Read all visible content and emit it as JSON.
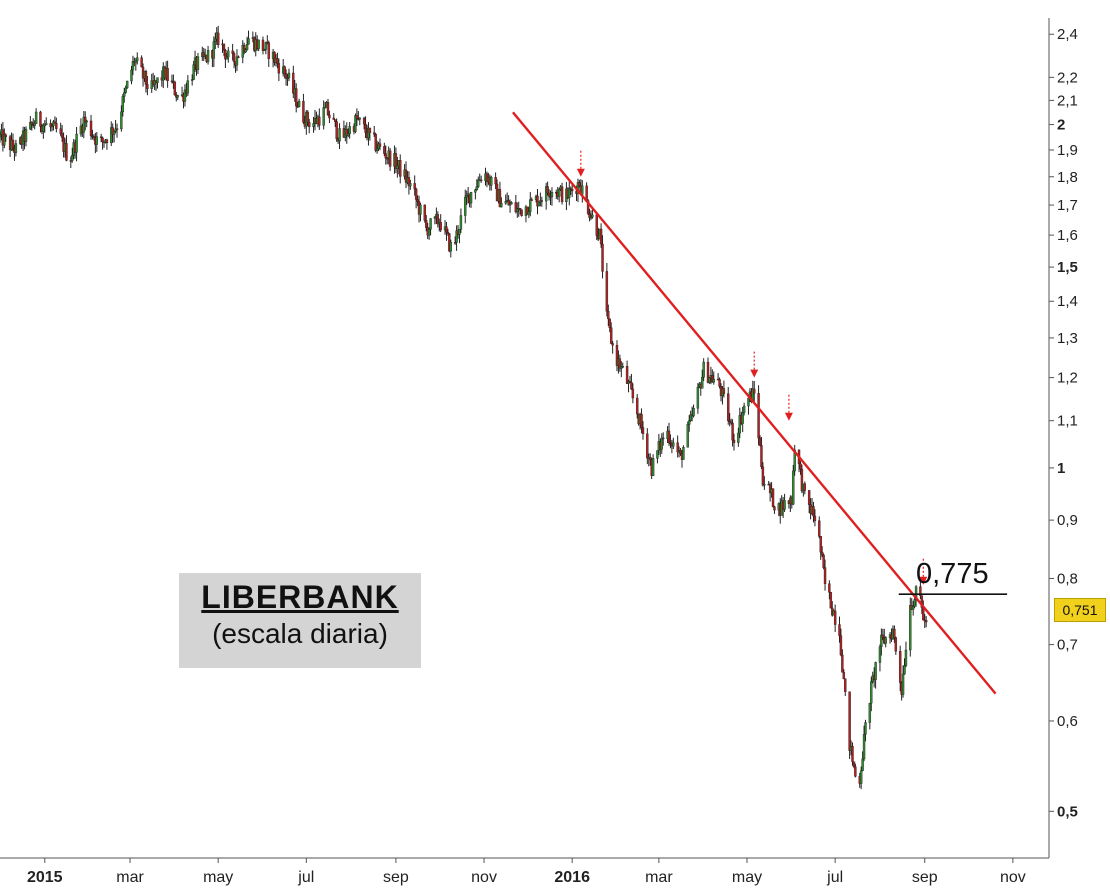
{
  "chart_data": {
    "type": "candlestick",
    "title": "LIBERBANK",
    "subtitle": "(escala diaria)",
    "y_scale": "log",
    "ylim": [
      0.455,
      2.48
    ],
    "y_ticks": [
      {
        "value": 2.4,
        "label": "2,4",
        "bold": false
      },
      {
        "value": 2.2,
        "label": "2,2",
        "bold": false
      },
      {
        "value": 2.1,
        "label": "2,1",
        "bold": false
      },
      {
        "value": 2.0,
        "label": "2",
        "bold": true
      },
      {
        "value": 1.9,
        "label": "1,9",
        "bold": false
      },
      {
        "value": 1.8,
        "label": "1,8",
        "bold": false
      },
      {
        "value": 1.7,
        "label": "1,7",
        "bold": false
      },
      {
        "value": 1.6,
        "label": "1,6",
        "bold": false
      },
      {
        "value": 1.5,
        "label": "1,5",
        "bold": true
      },
      {
        "value": 1.4,
        "label": "1,4",
        "bold": false
      },
      {
        "value": 1.3,
        "label": "1,3",
        "bold": false
      },
      {
        "value": 1.2,
        "label": "1,2",
        "bold": false
      },
      {
        "value": 1.1,
        "label": "1,1",
        "bold": false
      },
      {
        "value": 1.0,
        "label": "1",
        "bold": true
      },
      {
        "value": 0.9,
        "label": "0,9",
        "bold": false
      },
      {
        "value": 0.8,
        "label": "0,8",
        "bold": false
      },
      {
        "value": 0.7,
        "label": "0,7",
        "bold": false
      },
      {
        "value": 0.6,
        "label": "0,6",
        "bold": false
      },
      {
        "value": 0.5,
        "label": "0,5",
        "bold": true
      }
    ],
    "x_ticks": [
      {
        "date": "2015-01-01",
        "label": "2015",
        "bold": true
      },
      {
        "date": "2015-03-01",
        "label": "mar",
        "bold": false
      },
      {
        "date": "2015-05-01",
        "label": "may",
        "bold": false
      },
      {
        "date": "2015-07-01",
        "label": "jul",
        "bold": false
      },
      {
        "date": "2015-09-01",
        "label": "sep",
        "bold": false
      },
      {
        "date": "2015-11-01",
        "label": "nov",
        "bold": false
      },
      {
        "date": "2016-01-01",
        "label": "2016",
        "bold": true
      },
      {
        "date": "2016-03-01",
        "label": "mar",
        "bold": false
      },
      {
        "date": "2016-05-01",
        "label": "may",
        "bold": false
      },
      {
        "date": "2016-07-01",
        "label": "jul",
        "bold": false
      },
      {
        "date": "2016-09-01",
        "label": "sep",
        "bold": false
      },
      {
        "date": "2016-11-01",
        "label": "nov",
        "bold": false
      }
    ],
    "xlim": [
      "2014-12-01",
      "2016-11-26"
    ],
    "price_path": [
      [
        "2014-12-01",
        1.95
      ],
      [
        "2014-12-12",
        1.9
      ],
      [
        "2014-12-26",
        2.02
      ],
      [
        "2015-01-10",
        1.97
      ],
      [
        "2015-01-18",
        1.86
      ],
      [
        "2015-01-28",
        2.02
      ],
      [
        "2015-02-08",
        1.92
      ],
      [
        "2015-02-20",
        2.0
      ],
      [
        "2015-03-04",
        2.28
      ],
      [
        "2015-03-15",
        2.14
      ],
      [
        "2015-03-25",
        2.22
      ],
      [
        "2015-04-05",
        2.1
      ],
      [
        "2015-04-15",
        2.25
      ],
      [
        "2015-04-25",
        2.3
      ],
      [
        "2015-05-01",
        2.38
      ],
      [
        "2015-05-10",
        2.26
      ],
      [
        "2015-05-22",
        2.38
      ],
      [
        "2015-06-05",
        2.32
      ],
      [
        "2015-06-18",
        2.2
      ],
      [
        "2015-06-28",
        2.04
      ],
      [
        "2015-07-05",
        2.0
      ],
      [
        "2015-07-15",
        2.06
      ],
      [
        "2015-07-25",
        1.94
      ],
      [
        "2015-08-05",
        2.02
      ],
      [
        "2015-08-18",
        1.92
      ],
      [
        "2015-09-01",
        1.85
      ],
      [
        "2015-09-12",
        1.76
      ],
      [
        "2015-09-22",
        1.62
      ],
      [
        "2015-10-01",
        1.65
      ],
      [
        "2015-10-10",
        1.55
      ],
      [
        "2015-10-20",
        1.72
      ],
      [
        "2015-11-01",
        1.82
      ],
      [
        "2015-11-12",
        1.72
      ],
      [
        "2015-11-25",
        1.68
      ],
      [
        "2015-12-08",
        1.72
      ],
      [
        "2015-12-18",
        1.76
      ],
      [
        "2015-12-28",
        1.73
      ],
      [
        "2016-01-06",
        1.78
      ],
      [
        "2016-01-13",
        1.68
      ],
      [
        "2016-01-20",
        1.6
      ],
      [
        "2016-01-25",
        1.35
      ],
      [
        "2016-01-30",
        1.26
      ],
      [
        "2016-02-07",
        1.2
      ],
      [
        "2016-02-15",
        1.12
      ],
      [
        "2016-02-25",
        1.0
      ],
      [
        "2016-03-06",
        1.08
      ],
      [
        "2016-03-16",
        1.02
      ],
      [
        "2016-03-25",
        1.12
      ],
      [
        "2016-04-01",
        1.22
      ],
      [
        "2016-04-12",
        1.18
      ],
      [
        "2016-04-22",
        1.06
      ],
      [
        "2016-05-01",
        1.15
      ],
      [
        "2016-05-06",
        1.16
      ],
      [
        "2016-05-12",
        0.98
      ],
      [
        "2016-05-22",
        0.92
      ],
      [
        "2016-06-01",
        0.94
      ],
      [
        "2016-06-03",
        1.05
      ],
      [
        "2016-06-10",
        0.94
      ],
      [
        "2016-06-18",
        0.9
      ],
      [
        "2016-06-24",
        0.79
      ],
      [
        "2016-07-04",
        0.72
      ],
      [
        "2016-07-10",
        0.58
      ],
      [
        "2016-07-17",
        0.52
      ],
      [
        "2016-07-24",
        0.62
      ],
      [
        "2016-08-01",
        0.7
      ],
      [
        "2016-08-10",
        0.72
      ],
      [
        "2016-08-16",
        0.64
      ],
      [
        "2016-08-22",
        0.76
      ],
      [
        "2016-08-28",
        0.78
      ],
      [
        "2016-09-01",
        0.73
      ],
      [
        "2016-09-05",
        0.751
      ]
    ],
    "trendline": {
      "start": [
        "2015-11-21",
        2.05
      ],
      "end": [
        "2016-10-20",
        0.634
      ],
      "color": "#e02020"
    },
    "support_line": {
      "value": 0.775,
      "label": "0,775",
      "from": "2016-08-14",
      "to": "2016-10-28"
    },
    "touch_markers": [
      [
        "2016-01-07",
        1.8
      ],
      [
        "2016-05-06",
        1.2
      ],
      [
        "2016-05-30",
        1.1
      ],
      [
        "2016-08-31",
        0.79
      ]
    ],
    "last_price": {
      "value": 0.751,
      "label": "0,751",
      "color": "#f2d11d"
    },
    "grid": false,
    "legend": "none"
  }
}
